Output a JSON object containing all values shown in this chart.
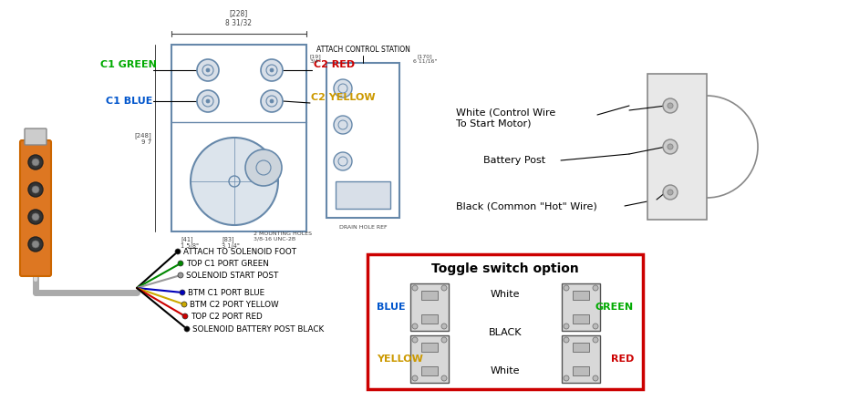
{
  "bg_color": "#ffffff",
  "colors": {
    "green": "#00aa00",
    "blue": "#0055cc",
    "red": "#cc0000",
    "orange_dark": "#cc6600",
    "orange_body": "#dd7722",
    "yellow": "#cc9900",
    "black": "#000000",
    "gray": "#888888",
    "light_gray": "#cccccc",
    "diagram_line": "#6688aa",
    "toggle_border": "#cc0000",
    "wire_gray": "#aaaaaa",
    "dim_line": "#444444"
  },
  "labels": {
    "c1_green": "C1 GREEN",
    "c1_blue": "C1 BLUE",
    "c2_red": "C2 RED",
    "c2_yellow": "C2 YELLOW",
    "attach_control": "ATTACH CONTROL STATION",
    "white_wire": "White (Control Wire\nTo Start Motor)",
    "battery_post": "Battery Post",
    "black_wire": "Black (Common \"Hot\" Wire)",
    "attach_solenoid": "ATTACH TO SOLENOID FOOT",
    "top_c1_green": "TOP C1 PORT GREEN",
    "solenoid_start": "SOLENOID START POST",
    "btm_c1_blue": "BTM C1 PORT BLUE",
    "btm_c2_yellow": "BTM C2 PORT YELLOW",
    "top_c2_red": "TOP C2 PORT RED",
    "solenoid_battery": "SOLENOID BATTERY POST BLACK",
    "toggle_title": "Toggle switch option",
    "blue_label": "BLUE",
    "yellow_label": "YELLOW",
    "green_label": "GREEN",
    "red_label": "RED",
    "white1": "White",
    "black_mid": "BLACK",
    "white2": "White",
    "dim_top": "[228]\n8 31/32",
    "dim_side": "[248]\n9 7",
    "dim_41": "[41]\n1 5/8\"",
    "dim_83": "[83]\n3 1/4\"",
    "dim_mh": "2 MOUNTING HOLES\n3/8-16 UNC-2B",
    "dim_19": "[19]\n3/4\"",
    "dim_170": "[170]\n6 11/16\"",
    "drain": "DRAIN HOLE REF"
  },
  "wires": [
    {
      "color": "#000000",
      "label": "ATTACH TO SOLENOID FOOT"
    },
    {
      "color": "#008800",
      "label": "TOP C1 PORT GREEN"
    },
    {
      "color": "#999999",
      "label": "SOLENOID START POST"
    },
    {
      "color": "#0000bb",
      "label": "BTM C1 PORT BLUE"
    },
    {
      "color": "#ccaa00",
      "label": "BTM C2 PORT YELLOW"
    },
    {
      "color": "#cc0000",
      "label": "TOP C2 PORT RED"
    },
    {
      "color": "#000000",
      "label": "SOLENOID BATTERY POST BLACK"
    }
  ]
}
